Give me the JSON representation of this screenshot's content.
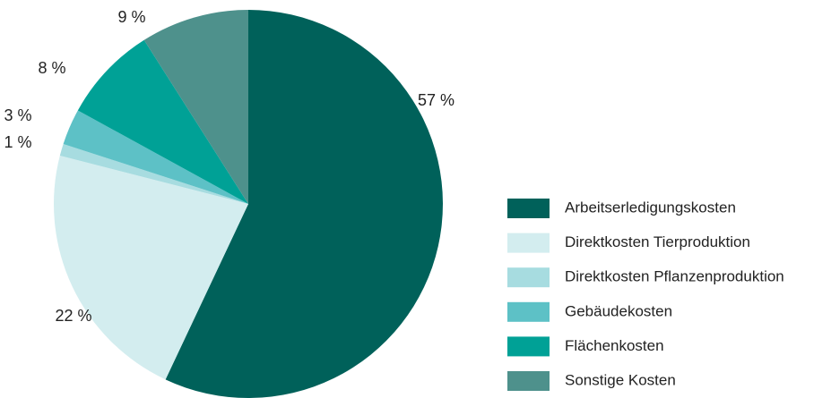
{
  "chart_data": {
    "type": "pie",
    "categories": [
      "Arbeitserledigungskosten",
      "Direktkosten Tierproduktion",
      "Direktkosten Pflanzenproduktion",
      "Gebäudekosten",
      "Flächenkosten",
      "Sonstige Kosten"
    ],
    "values": [
      57,
      22,
      1,
      3,
      8,
      9
    ],
    "value_labels": [
      "57 %",
      "22 %",
      "1 %",
      "3 %",
      "8 %",
      "9 %"
    ],
    "colors": [
      "#00615a",
      "#d3edef",
      "#a7dce0",
      "#5dc1c6",
      "#00a196",
      "#4e918c"
    ],
    "legend": "right"
  }
}
